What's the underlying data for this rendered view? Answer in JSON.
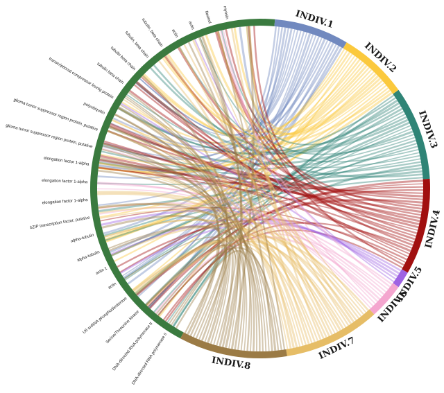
{
  "individuals": [
    {
      "label": "INDIV.1",
      "color": "#7189bf",
      "span": 31
    },
    {
      "label": "INDIV.2",
      "color": "#fbc93d",
      "span": 29
    },
    {
      "label": "INDIV.3",
      "color": "#2f8476",
      "span": 39
    },
    {
      "label": "INDIV.4",
      "color": "#a10f0f",
      "span": 40
    },
    {
      "label": "INDIV.5",
      "color": "#9f63e3",
      "span": 7
    },
    {
      "label": "INDIV.6",
      "color": "#f4a6cf",
      "span": 15
    },
    {
      "label": "INDIV.7",
      "color": "#e6bd66",
      "span": 40
    },
    {
      "label": "INDIV.8",
      "color": "#9b7b45",
      "span": 45
    }
  ],
  "genes": [
    "myosin",
    "flavinol",
    "actin",
    "actin",
    "tubulin, beta chain",
    "tubulin, beta chain",
    "tubulin beta chain",
    "tubulin beta chain",
    "transcriptional corepressor leunig protein",
    "polyubiquitin",
    "glioma tumor suppressor region protein, putative",
    "glioma tumor suppressor region protein, putative",
    "elongation factor 1-alpha",
    "elongation factor 1-alpha",
    "elongation factor 1-alpha",
    "bZIP transcription factor, putative",
    "alpha-tubulin",
    "alpha-tubulin",
    "actin 1",
    "actin",
    "U6 snRNA phosphodiesterase",
    "Serine/Threonine kinase",
    "DNA-directed RNA polymerase II",
    "DNA-directed RNA polymerase II"
  ],
  "gene_arc_color": "#3a7a3f"
}
